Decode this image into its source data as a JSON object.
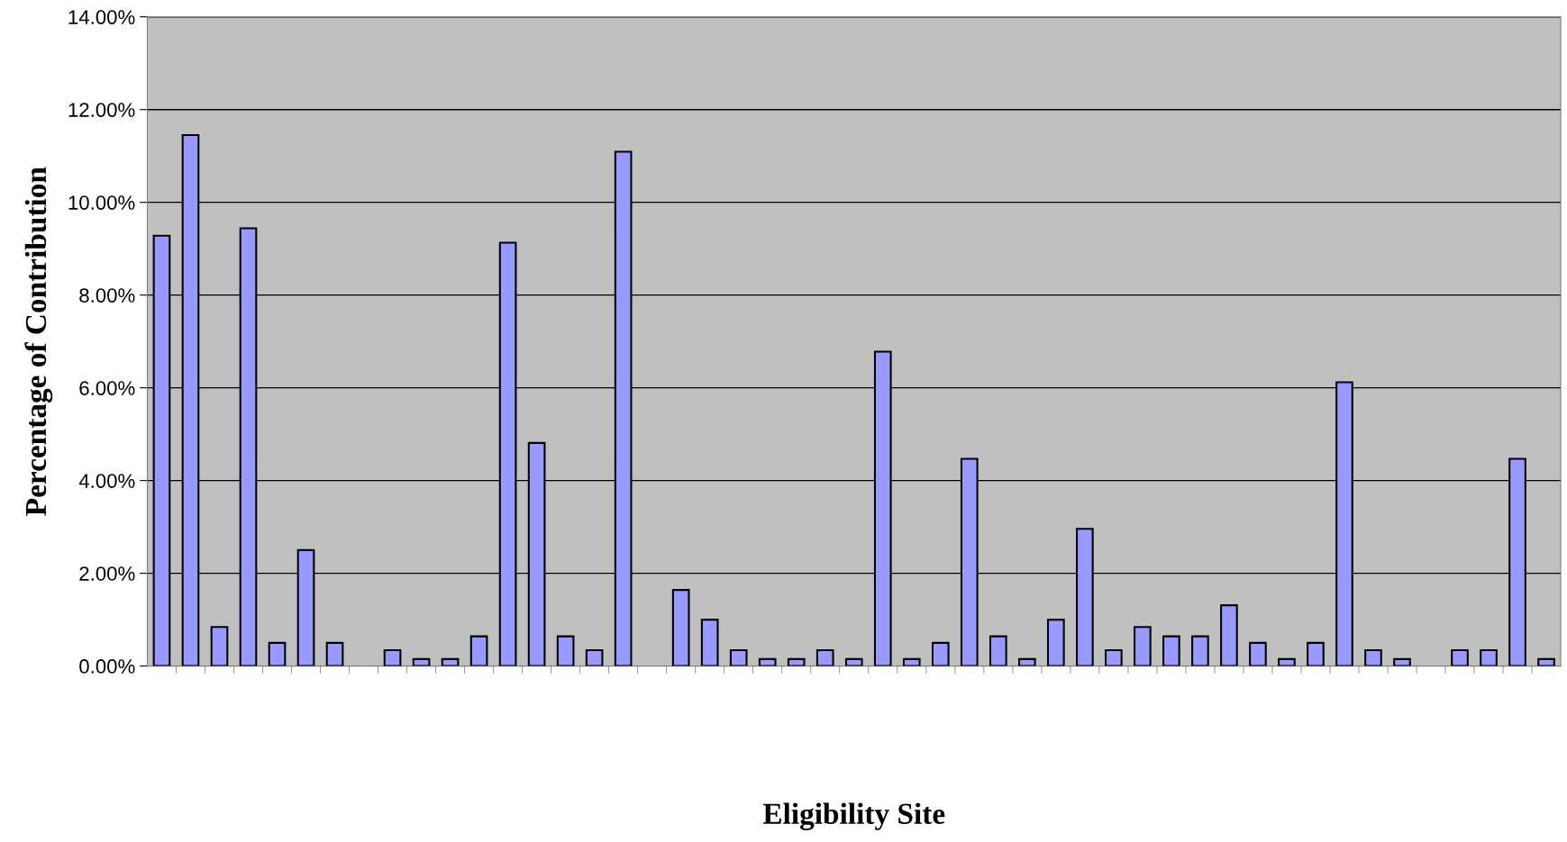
{
  "chart_data": {
    "type": "bar",
    "xlabel": "Eligibility Site",
    "ylabel": "Percentage of Contribution",
    "categories": [
      null,
      null,
      null,
      null,
      null,
      null,
      null,
      null,
      null,
      null,
      null,
      null,
      null,
      null,
      null,
      null,
      null,
      null,
      null,
      null,
      null,
      null,
      null,
      null,
      null,
      null,
      null,
      null,
      null,
      null,
      null,
      null,
      null,
      null,
      null,
      null,
      null,
      null,
      null,
      null,
      null,
      null,
      null,
      null,
      null,
      null,
      null,
      null,
      null
    ],
    "values": [
      9.28,
      11.45,
      0.84,
      9.44,
      0.5,
      2.5,
      0.5,
      null,
      0.34,
      0.15,
      0.15,
      0.64,
      9.13,
      4.81,
      0.64,
      0.34,
      11.09,
      null,
      1.64,
      1.0,
      0.34,
      0.15,
      0.15,
      0.34,
      0.15,
      6.78,
      0.15,
      0.5,
      4.47,
      0.64,
      0.15,
      1.0,
      2.96,
      0.34,
      0.84,
      0.64,
      0.64,
      1.31,
      0.5,
      0.15,
      0.5,
      6.12,
      0.34,
      0.15,
      null,
      0.34,
      0.34,
      4.47,
      0.15
    ],
    "color": "#9999ff",
    "ylim": [
      0,
      14
    ],
    "yticks": [
      {
        "value": 0,
        "label": "0.00%"
      },
      {
        "value": 2,
        "label": "2.00%"
      },
      {
        "value": 4,
        "label": "4.00%"
      },
      {
        "value": 6,
        "label": "6.00%"
      },
      {
        "value": 8,
        "label": "8.00%"
      },
      {
        "value": 10,
        "label": "10.00%"
      },
      {
        "value": 12,
        "label": "12.00%"
      },
      {
        "value": 14,
        "label": "14.00%"
      }
    ],
    "grid": "y",
    "legend": false
  }
}
